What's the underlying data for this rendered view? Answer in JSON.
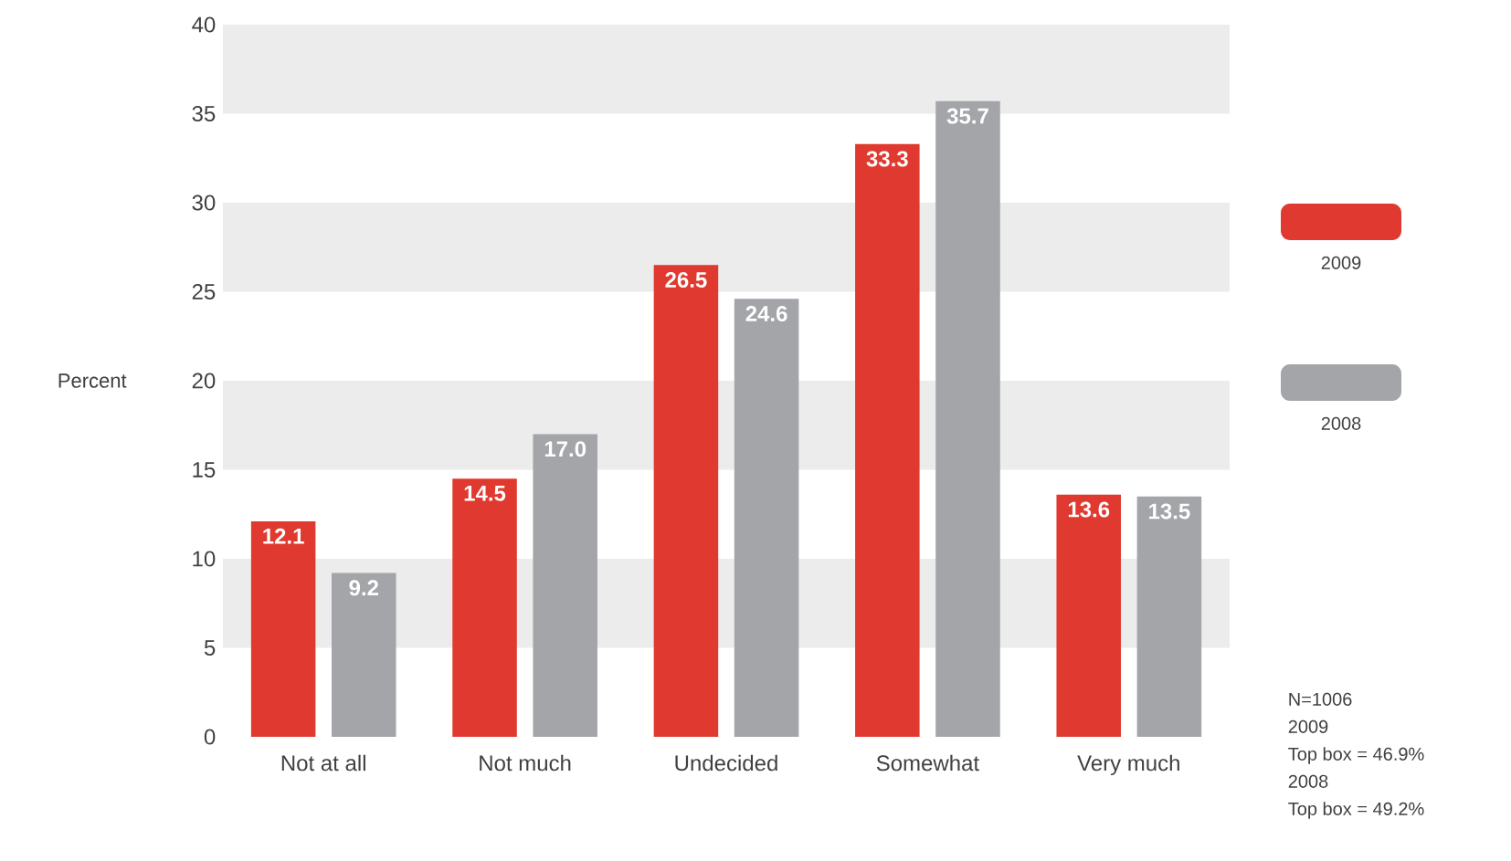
{
  "chart_data": {
    "type": "bar",
    "ylabel": "Percent",
    "categories": [
      "Not at all",
      "Not much",
      "Undecided",
      "Somewhat",
      "Very much"
    ],
    "series": [
      {
        "name": "2009",
        "color": "#e03a30",
        "values": [
          12.1,
          14.5,
          26.5,
          33.3,
          13.6
        ],
        "value_labels": [
          "12.1",
          "14.5",
          "26.5",
          "33.3",
          "13.6"
        ]
      },
      {
        "name": "2008",
        "color": "#a3a5a8",
        "values": [
          9.2,
          17.0,
          24.6,
          35.7,
          13.5
        ],
        "value_labels": [
          "9.2",
          "17.0",
          "24.6",
          "35.7",
          "13.5"
        ]
      }
    ],
    "ylim": [
      0,
      40
    ],
    "yticks": [
      0,
      5,
      10,
      15,
      20,
      25,
      30,
      35,
      40
    ],
    "bands": [
      {
        "axis": "y",
        "from": 5,
        "to": 10,
        "color": "#ececec"
      },
      {
        "axis": "y",
        "from": 15,
        "to": 20,
        "color": "#ececec"
      },
      {
        "axis": "y",
        "from": 25,
        "to": 30,
        "color": "#ececec"
      },
      {
        "axis": "y",
        "from": 35,
        "to": 40,
        "color": "#ececec"
      }
    ],
    "legend": "right",
    "annotations": [
      "N=1006",
      "2009",
      "Top box = 46.9%",
      "2008",
      "Top box = 49.2%"
    ]
  }
}
